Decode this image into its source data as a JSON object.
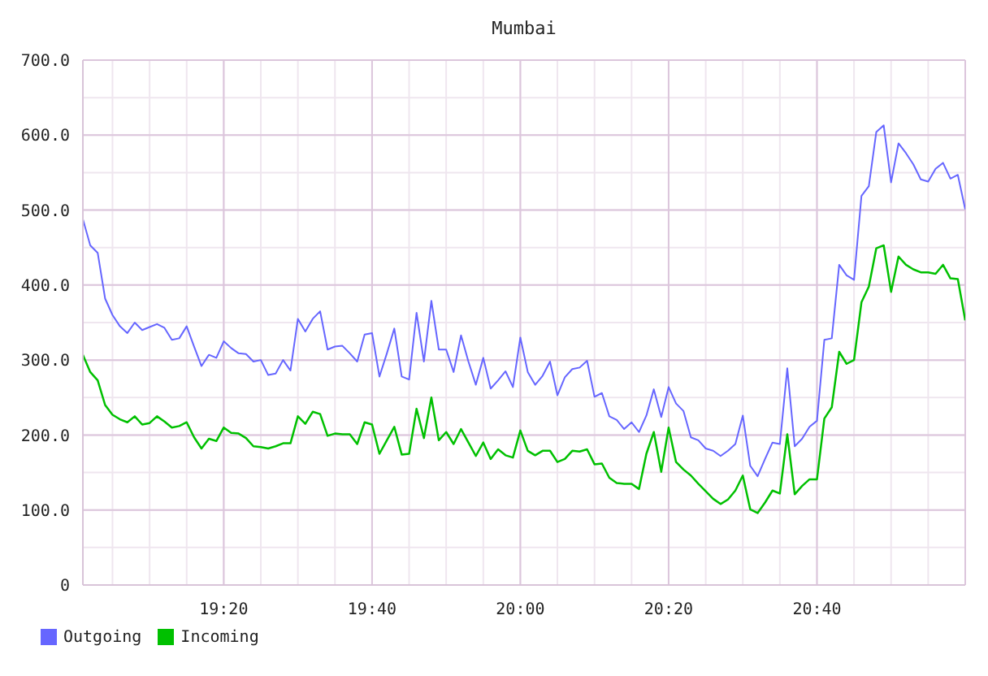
{
  "chart_data": {
    "type": "line",
    "title": "Mumbai",
    "x": [
      19.0167,
      19.0333,
      19.05,
      19.0667,
      19.0833,
      19.1,
      19.1167,
      19.1333,
      19.15,
      19.1667,
      19.1833,
      19.2,
      19.2167,
      19.2333,
      19.25,
      19.2667,
      19.2833,
      19.3,
      19.3167,
      19.3333,
      19.35,
      19.3667,
      19.3833,
      19.4,
      19.4167,
      19.4333,
      19.45,
      19.4667,
      19.4833,
      19.5,
      19.5167,
      19.5333,
      19.55,
      19.5667,
      19.5833,
      19.6,
      19.6167,
      19.6333,
      19.65,
      19.6667,
      19.6833,
      19.7,
      19.7167,
      19.7333,
      19.75,
      19.7667,
      19.7833,
      19.8,
      19.8167,
      19.8333,
      19.85,
      19.8667,
      19.8833,
      19.9,
      19.9167,
      19.9333,
      19.95,
      19.9667,
      19.9833,
      20.0,
      20.0167,
      20.0333,
      20.05,
      20.0667,
      20.0833,
      20.1,
      20.1167,
      20.1333,
      20.15,
      20.1667,
      20.1833,
      20.2,
      20.2167,
      20.2333,
      20.25,
      20.2667,
      20.2833,
      20.3,
      20.3167,
      20.3333,
      20.35,
      20.3667,
      20.3833,
      20.4,
      20.4167,
      20.4333,
      20.45,
      20.4667,
      20.4833,
      20.5,
      20.5167,
      20.5333,
      20.55,
      20.5667,
      20.5833,
      20.6,
      20.6167,
      20.6333,
      20.65,
      20.6667,
      20.6833,
      20.7,
      20.7167,
      20.7333,
      20.75,
      20.7667,
      20.7833,
      20.8,
      20.8167,
      20.8333,
      20.85,
      20.8667,
      20.8833,
      20.9,
      20.9167,
      20.9333,
      20.95,
      20.9667,
      20.9833,
      21.0
    ],
    "series": [
      {
        "name": "Outgoing",
        "color": "#6666ff",
        "values": [
          488,
          453,
          443,
          382,
          360,
          345,
          336,
          350,
          340,
          344,
          348,
          343,
          327,
          329,
          345,
          318,
          292,
          307,
          303,
          325,
          316,
          309,
          308,
          298,
          300,
          280,
          282,
          300,
          286,
          355,
          338,
          355,
          365,
          314,
          318,
          319,
          309,
          298,
          334,
          336,
          278,
          309,
          342,
          278,
          274,
          363,
          298,
          379,
          314,
          314,
          284,
          333,
          298,
          267,
          303,
          262,
          273,
          285,
          264,
          330,
          284,
          267,
          279,
          298,
          253,
          277,
          288,
          290,
          299,
          251,
          256,
          225,
          220,
          208,
          217,
          204,
          226,
          261,
          224,
          264,
          242,
          232,
          197,
          193,
          182,
          179,
          172,
          179,
          188,
          226,
          159,
          145,
          168,
          190,
          188,
          289,
          185,
          195,
          211,
          219,
          327,
          329,
          427,
          413,
          407,
          519,
          532,
          604,
          613,
          537,
          589,
          576,
          561,
          541,
          538,
          555,
          563,
          542,
          547,
          501
        ]
      },
      {
        "name": "Incoming",
        "color": "#00c000",
        "values": [
          307,
          284,
          273,
          240,
          227,
          221,
          217,
          225,
          214,
          216,
          225,
          218,
          210,
          212,
          217,
          197,
          182,
          195,
          192,
          210,
          203,
          202,
          196,
          185,
          184,
          182,
          185,
          189,
          189,
          225,
          215,
          231,
          228,
          199,
          202,
          201,
          201,
          188,
          217,
          214,
          175,
          193,
          211,
          174,
          175,
          235,
          196,
          250,
          193,
          204,
          188,
          208,
          190,
          172,
          190,
          168,
          181,
          173,
          170,
          206,
          179,
          173,
          179,
          179,
          164,
          168,
          179,
          178,
          181,
          161,
          162,
          143,
          136,
          135,
          135,
          128,
          175,
          204,
          151,
          210,
          164,
          154,
          146,
          135,
          125,
          115,
          108,
          114,
          126,
          146,
          101,
          96,
          110,
          126,
          122,
          201,
          121,
          132,
          141,
          141,
          222,
          237,
          311,
          295,
          300,
          377,
          398,
          449,
          453,
          391,
          438,
          427,
          421,
          417,
          417,
          415,
          427,
          409,
          408,
          353
        ]
      }
    ],
    "xlim": [
      19.0167,
      21.0
    ],
    "xticks": [
      {
        "value": 19.0833,
        "label": null
      },
      {
        "value": 19.1667,
        "label": null
      },
      {
        "value": 19.25,
        "label": null
      },
      {
        "value": 19.3333,
        "label": "19:20"
      },
      {
        "value": 19.4167,
        "label": null
      },
      {
        "value": 19.5,
        "label": null
      },
      {
        "value": 19.5833,
        "label": null
      },
      {
        "value": 19.6667,
        "label": "19:40"
      },
      {
        "value": 19.75,
        "label": null
      },
      {
        "value": 19.8333,
        "label": null
      },
      {
        "value": 19.9167,
        "label": null
      },
      {
        "value": 20.0,
        "label": "20:00"
      },
      {
        "value": 20.0833,
        "label": null
      },
      {
        "value": 20.1667,
        "label": null
      },
      {
        "value": 20.25,
        "label": null
      },
      {
        "value": 20.3333,
        "label": "20:20"
      },
      {
        "value": 20.4167,
        "label": null
      },
      {
        "value": 20.5,
        "label": null
      },
      {
        "value": 20.5833,
        "label": null
      },
      {
        "value": 20.6667,
        "label": "20:40"
      },
      {
        "value": 20.75,
        "label": null
      },
      {
        "value": 20.8333,
        "label": null
      },
      {
        "value": 20.9167,
        "label": null
      },
      {
        "value": 21.0,
        "label": null
      }
    ],
    "ylim": [
      0,
      700
    ],
    "yticks": [
      0,
      {
        "value": 50,
        "label": null
      },
      {
        "value": 100,
        "label": "100.0"
      },
      {
        "value": 150,
        "label": null
      },
      {
        "value": 200,
        "label": "200.0"
      },
      {
        "value": 250,
        "label": null
      },
      {
        "value": 300,
        "label": "300.0"
      },
      {
        "value": 350,
        "label": null
      },
      {
        "value": 400,
        "label": "400.0"
      },
      {
        "value": 450,
        "label": null
      },
      {
        "value": 500,
        "label": "500.0"
      },
      {
        "value": 550,
        "label": null
      },
      {
        "value": 600,
        "label": "600.0"
      },
      {
        "value": 650,
        "label": null
      },
      {
        "value": 700,
        "label": "700.0"
      }
    ],
    "grid": true,
    "legend": "bottom left"
  }
}
